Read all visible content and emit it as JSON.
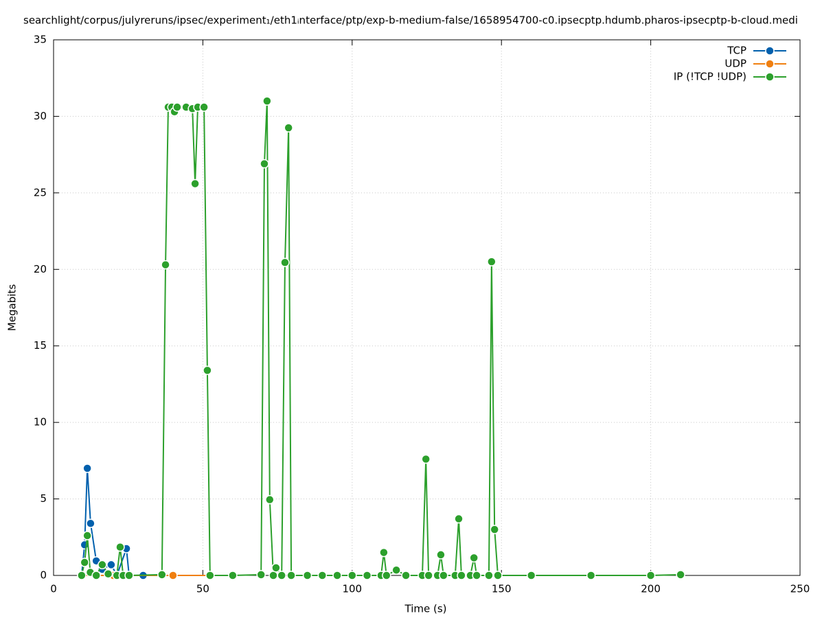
{
  "chart_data": {
    "type": "line",
    "title": "searchlight/corpus/julyreruns/ipsec/experiment₁/eth1ᵢnterface/ptp/exp-b-medium-false/1658954700-c0.ipsecptp.hdumb.pharos-ipsecptp-b-cloud.medi",
    "x_label": "Time (s)",
    "y_label": "Megabits",
    "xlim": [
      0,
      250
    ],
    "xticks": [
      0,
      50,
      100,
      150,
      200,
      250
    ],
    "ylim": [
      0,
      35
    ],
    "yticks": [
      0,
      5,
      10,
      15,
      20,
      25,
      30,
      35
    ],
    "grid": true,
    "legend": "top-right",
    "series": [
      {
        "name": "TCP",
        "color": "#0060ad",
        "x": [
          9.4,
          10.4,
          11.3,
          12.4,
          14.3,
          16.3,
          19.3,
          21.2,
          24.4,
          25.3,
          30,
          40,
          60
        ],
        "values": [
          0,
          2,
          7,
          3.4,
          0.95,
          0.4,
          0.7,
          0,
          1.75,
          0,
          0,
          0,
          0
        ]
      },
      {
        "name": "UDP",
        "color": "#f07f10",
        "x": [
          9.4,
          20,
          40,
          60
        ],
        "values": [
          0,
          0,
          0,
          0
        ]
      },
      {
        "name": "IP (!TCP  !UDP)",
        "color": "#2ca02c",
        "x": [
          9.4,
          10.4,
          11.3,
          12.3,
          14.3,
          16.3,
          18.3,
          21.2,
          22.3,
          23.3,
          25.3,
          36.3,
          37.5,
          38.4,
          39.6,
          40.5,
          41.4,
          44.4,
          46.5,
          47.4,
          48.3,
          50.4,
          51.5,
          52.4,
          60,
          69.5,
          70.6,
          71.5,
          72.4,
          73.6,
          74.5,
          76.4,
          77.5,
          78.7,
          79.6,
          85,
          90,
          95,
          100,
          105,
          109.7,
          110.6,
          111.5,
          114.8,
          118,
          123.5,
          124.7,
          125.6,
          128.6,
          129.7,
          130.6,
          134.5,
          135.7,
          136.6,
          139.6,
          140.8,
          141.7,
          145.8,
          146.7,
          147.7,
          148.8,
          160,
          180,
          200,
          210
        ],
        "values": [
          0,
          0.85,
          2.6,
          0.2,
          0,
          0.7,
          0.1,
          0,
          1.85,
          0,
          0,
          0.05,
          20.3,
          30.6,
          30.6,
          30.3,
          30.6,
          30.6,
          30.5,
          25.6,
          30.6,
          30.6,
          13.4,
          0,
          0,
          0.05,
          26.9,
          31,
          4.95,
          0,
          0.5,
          0,
          20.45,
          29.25,
          0,
          0,
          0,
          0,
          0,
          0,
          0,
          1.5,
          0,
          0.35,
          0,
          0,
          7.6,
          0,
          0,
          1.35,
          0,
          0,
          3.7,
          0,
          0,
          1.15,
          0,
          0,
          20.5,
          3,
          0,
          0,
          0,
          0,
          0.05
        ]
      }
    ]
  }
}
